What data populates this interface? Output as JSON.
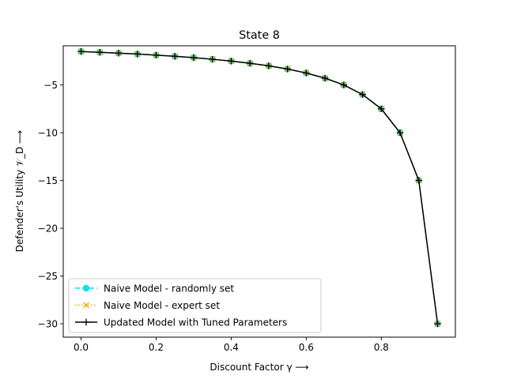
{
  "chart_data": {
    "type": "line",
    "title": "State 8",
    "xlabel": "Discount Factor γ ⟶",
    "ylabel": "Defender's Utility 𝒱_D ⟶",
    "xlim": [
      -0.0475,
      0.9975
    ],
    "ylim": [
      -31.4,
      -0.9
    ],
    "xticks": [
      0.0,
      0.2,
      0.4,
      0.6,
      0.8
    ],
    "xtick_labels": [
      "0.0",
      "0.2",
      "0.4",
      "0.6",
      "0.8"
    ],
    "yticks": [
      -5,
      -10,
      -15,
      -20,
      -25,
      -30
    ],
    "ytick_labels": [
      "−5",
      "−10",
      "−15",
      "−20",
      "−25",
      "−30"
    ],
    "grid": false,
    "legend_position": "lower-left",
    "x": [
      0.0,
      0.05,
      0.1,
      0.15,
      0.2,
      0.25,
      0.3,
      0.35,
      0.4,
      0.45,
      0.5,
      0.55,
      0.6,
      0.65,
      0.7,
      0.75,
      0.8,
      0.85,
      0.9,
      0.95
    ],
    "series": [
      {
        "name": "Naive Model - randomly set",
        "color": "#00e5ee",
        "line_style": "dashed",
        "marker": "circle",
        "values": [
          -1.5,
          -1.58,
          -1.67,
          -1.76,
          -1.88,
          -2.0,
          -2.14,
          -2.31,
          -2.5,
          -2.73,
          -3.0,
          -3.33,
          -3.75,
          -4.29,
          -5.0,
          -6.0,
          -7.5,
          -10.0,
          -15.0,
          -30.0
        ]
      },
      {
        "name": "Naive Model - expert set",
        "color": "#f0a30a",
        "line_style": "dotted",
        "marker": "x",
        "values": [
          -1.5,
          -1.58,
          -1.67,
          -1.76,
          -1.88,
          -2.0,
          -2.14,
          -2.31,
          -2.5,
          -2.73,
          -3.0,
          -3.33,
          -3.75,
          -4.29,
          -5.0,
          -6.0,
          -7.5,
          -10.0,
          -15.0,
          -30.0
        ]
      },
      {
        "name": "Updated Model with Tuned Parameters",
        "color": "#000000",
        "line_style": "solid",
        "marker": "plus",
        "values": [
          -1.5,
          -1.58,
          -1.67,
          -1.76,
          -1.88,
          -2.0,
          -2.14,
          -2.31,
          -2.5,
          -2.73,
          -3.0,
          -3.33,
          -3.75,
          -4.29,
          -5.0,
          -6.0,
          -7.5,
          -10.0,
          -15.0,
          -30.0
        ]
      }
    ]
  }
}
